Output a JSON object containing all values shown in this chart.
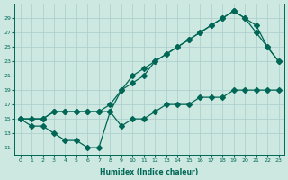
{
  "xlabel": "Humidex (Indice chaleur)",
  "background_color": "#cce8e0",
  "grid_color": "#aacccc",
  "line_color": "#006655",
  "xlim": [
    -0.5,
    23.5
  ],
  "ylim": [
    10,
    31
  ],
  "yticks": [
    11,
    13,
    15,
    17,
    19,
    21,
    23,
    25,
    27,
    29
  ],
  "xticks": [
    0,
    1,
    2,
    3,
    4,
    5,
    6,
    7,
    8,
    9,
    10,
    11,
    12,
    13,
    14,
    15,
    16,
    17,
    18,
    19,
    20,
    21,
    22,
    23
  ],
  "line1_x": [
    0,
    1,
    2,
    3,
    4,
    5,
    6,
    7,
    8,
    9,
    10,
    11,
    12,
    13,
    14,
    15,
    16,
    17,
    18,
    19,
    20,
    21,
    22,
    23
  ],
  "line1_y": [
    15,
    15,
    15,
    16,
    16,
    16,
    16,
    16,
    17,
    19,
    21,
    22,
    23,
    24,
    25,
    26,
    27,
    28,
    29,
    30,
    29,
    28,
    25,
    23
  ],
  "line2_x": [
    0,
    2,
    3,
    4,
    5,
    6,
    7,
    8,
    9,
    10,
    11,
    12,
    13,
    14,
    15,
    16,
    17,
    18,
    19,
    20,
    21,
    22,
    23
  ],
  "line2_y": [
    15,
    15,
    16,
    16,
    16,
    16,
    16,
    16,
    19,
    20,
    21,
    23,
    24,
    25,
    26,
    27,
    28,
    29,
    30,
    29,
    27,
    25,
    23
  ],
  "line3_x": [
    0,
    1,
    2,
    3,
    4,
    5,
    6,
    7,
    8,
    9,
    10,
    11,
    12,
    13,
    14,
    15,
    16,
    17,
    18,
    19,
    20,
    21,
    22,
    23
  ],
  "line3_y": [
    15,
    14,
    14,
    13,
    12,
    12,
    11,
    11,
    16,
    14,
    15,
    15,
    16,
    17,
    17,
    17,
    18,
    18,
    18,
    19,
    19,
    19,
    19,
    19
  ]
}
